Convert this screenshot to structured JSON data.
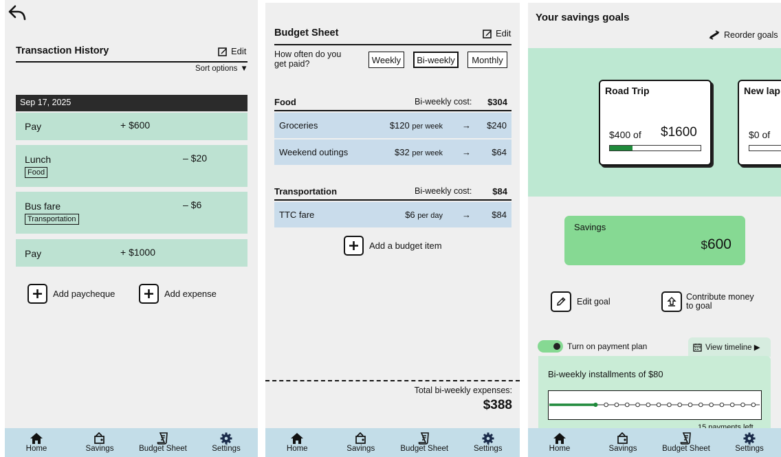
{
  "nav": [
    {
      "label": "Home",
      "icon": "home-icon"
    },
    {
      "label": "Savings",
      "icon": "wallet-icon"
    },
    {
      "label": "Budget Sheet",
      "icon": "receipt-icon"
    },
    {
      "label": "Settings",
      "icon": "gear-icon"
    }
  ],
  "history": {
    "title": "Transaction History",
    "edit_label": "Edit",
    "sort_label": "Sort options",
    "date_header": "Sep 17, 2025",
    "transactions": [
      {
        "label": "Pay",
        "amount": "+ $600",
        "tag": ""
      },
      {
        "label": "Lunch",
        "amount": "– $20",
        "tag": "Food"
      },
      {
        "label": "Bus fare",
        "amount": "– $6",
        "tag": "Transportation"
      },
      {
        "label": "Pay",
        "amount": "+ $1000",
        "tag": ""
      }
    ],
    "add_paycheque_label": "Add paycheque",
    "add_expense_label": "Add expense"
  },
  "budget": {
    "title": "Budget Sheet",
    "edit_label": "Edit",
    "paid_question": "How often do you get paid?",
    "frequency_options": [
      "Weekly",
      "Bi-weekly",
      "Monthly"
    ],
    "selected_frequency": "Bi-weekly",
    "categories": [
      {
        "name": "Food",
        "cost_label": "Bi-weekly cost:",
        "cost": "$304",
        "items": [
          {
            "name": "Groceries",
            "amount": "$120",
            "unit": "per week",
            "arrow": "→",
            "total": "$240"
          },
          {
            "name": "Weekend outings",
            "amount": "$32",
            "unit": "per week",
            "arrow": "→",
            "total": "$64"
          }
        ]
      },
      {
        "name": "Transportation",
        "cost_label": "Bi-weekly cost:",
        "cost": "$84",
        "items": [
          {
            "name": "TTC fare",
            "amount": "$6",
            "unit": "per day",
            "arrow": "→",
            "total": "$84"
          }
        ]
      }
    ],
    "add_item_label": "Add a budget item",
    "total_label": "Total bi-weekly expenses:",
    "total_value": "$388"
  },
  "savings": {
    "title": "Your savings goals",
    "reorder_label": "Reorder goals",
    "goals": [
      {
        "name": "Road Trip",
        "saved": "$400 of",
        "target": "$1600",
        "progress": 0.25
      },
      {
        "name": "New lap",
        "saved": "$0 of",
        "target": "",
        "progress": 0
      }
    ],
    "savings_label": "Savings",
    "savings_currency": "$",
    "savings_value": "600",
    "edit_goal_label": "Edit goal",
    "contribute_label_1": "Contribute money",
    "contribute_label_2": "to goal",
    "payment_plan_label": "Turn on payment plan",
    "view_timeline_label": "View timeline ▶",
    "installments_label": "Bi-weekly installments of $80",
    "payments_left_label": "15 payments left",
    "payments_total": 20,
    "payments_made": 5
  },
  "colors": {
    "mint": "#bde2d2",
    "blue_row": "#c9dceb",
    "nav_bg": "#c3dde8",
    "savings_green": "#86d993",
    "progress_green": "#1f8a3b"
  }
}
